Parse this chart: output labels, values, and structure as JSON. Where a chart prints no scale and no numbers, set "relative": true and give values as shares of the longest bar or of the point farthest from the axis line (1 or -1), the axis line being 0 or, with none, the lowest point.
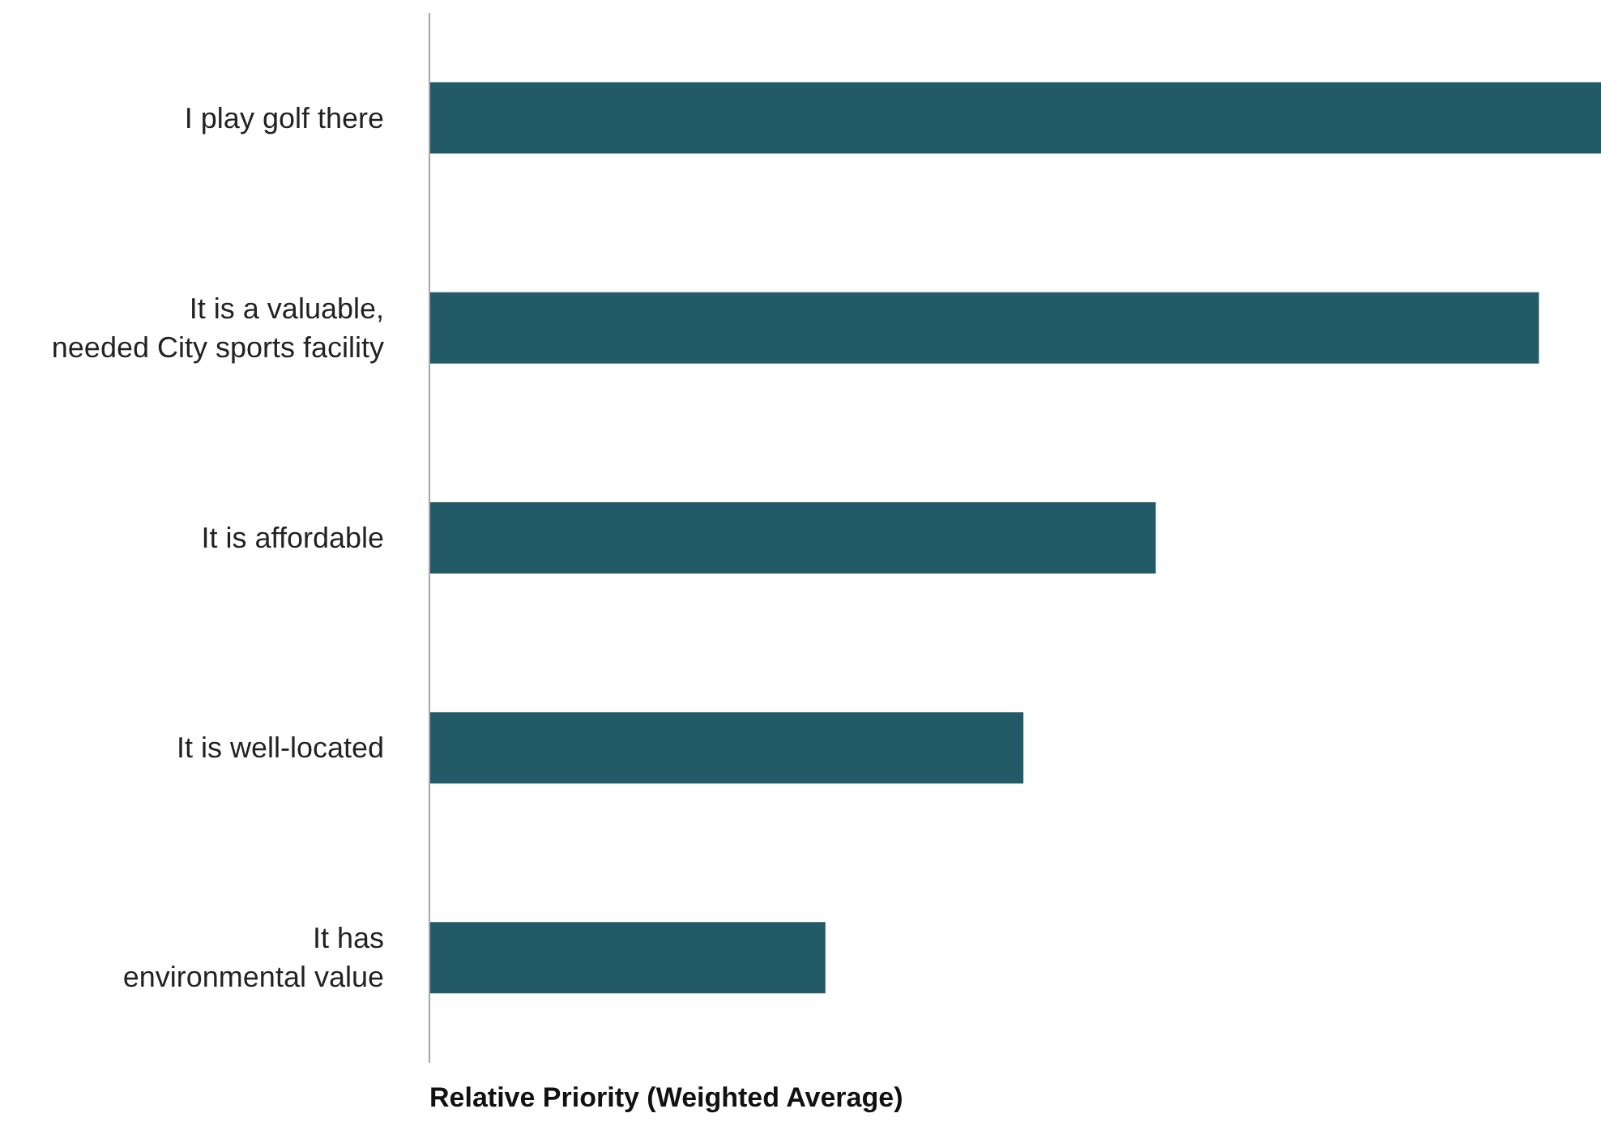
{
  "chart_data": {
    "type": "bar",
    "orientation": "horizontal",
    "relative": true,
    "xlabel": "Relative Priority (Weighted Average)",
    "categories": [
      "I play golf there",
      "It is a valuable,\nneeded City sports facility",
      "It is affordable",
      "It is well-located",
      "It has\nenvironmental value"
    ],
    "values": [
      1,
      0.947,
      0.62,
      0.507,
      0.338
    ],
    "color": "#235a68",
    "legend": false,
    "grid": false
  }
}
